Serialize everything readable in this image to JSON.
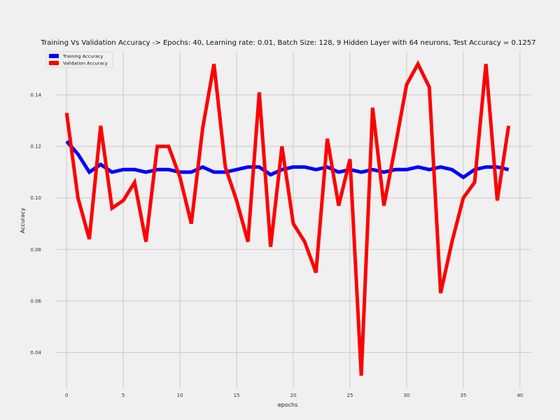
{
  "chart_data": {
    "type": "line",
    "title": "Training Vs Validation Accuracy -> Epochs: 40, Learning rate: 0.01, Batch Size: 128, 9 Hidden Layer with 64 neurons, Test Accuracy = 0.1257",
    "xlabel": "epochs",
    "ylabel": "Accuracy",
    "xlim": [
      -1,
      41
    ],
    "ylim": [
      0.026,
      0.157
    ],
    "xticks": [
      0,
      5,
      10,
      15,
      20,
      25,
      30,
      35,
      40
    ],
    "yticks": [
      0.04,
      0.06,
      0.08,
      0.1,
      0.12,
      0.14
    ],
    "ytick_labels": [
      "0.04",
      "0.06",
      "0.08",
      "0.10",
      "0.12",
      "0.14"
    ],
    "grid": true,
    "legend_position": "top-left",
    "x": [
      0,
      1,
      2,
      3,
      4,
      5,
      6,
      7,
      8,
      9,
      10,
      11,
      12,
      13,
      14,
      15,
      16,
      17,
      18,
      19,
      20,
      21,
      22,
      23,
      24,
      25,
      26,
      27,
      28,
      29,
      30,
      31,
      32,
      33,
      34,
      35,
      36,
      37,
      38,
      39
    ],
    "series": [
      {
        "name": "Training Accuracy",
        "color": "#0000ff",
        "values": [
          0.122,
          0.117,
          0.11,
          0.113,
          0.11,
          0.111,
          0.111,
          0.11,
          0.111,
          0.111,
          0.11,
          0.11,
          0.112,
          0.11,
          0.11,
          0.111,
          0.112,
          0.112,
          0.109,
          0.111,
          0.112,
          0.112,
          0.111,
          0.112,
          0.11,
          0.111,
          0.11,
          0.111,
          0.11,
          0.111,
          0.111,
          0.112,
          0.111,
          0.112,
          0.111,
          0.108,
          0.111,
          0.112,
          0.112,
          0.111
        ]
      },
      {
        "name": "Validation Accuracy",
        "color": "#ff0000",
        "values": [
          0.133,
          0.1,
          0.084,
          0.128,
          0.096,
          0.099,
          0.106,
          0.083,
          0.12,
          0.12,
          0.108,
          0.09,
          0.127,
          0.152,
          0.112,
          0.099,
          0.083,
          0.141,
          0.081,
          0.12,
          0.09,
          0.083,
          0.071,
          0.123,
          0.097,
          0.115,
          0.031,
          0.135,
          0.097,
          0.12,
          0.144,
          0.152,
          0.143,
          0.063,
          0.083,
          0.1,
          0.106,
          0.152,
          0.099,
          0.128
        ]
      }
    ]
  }
}
